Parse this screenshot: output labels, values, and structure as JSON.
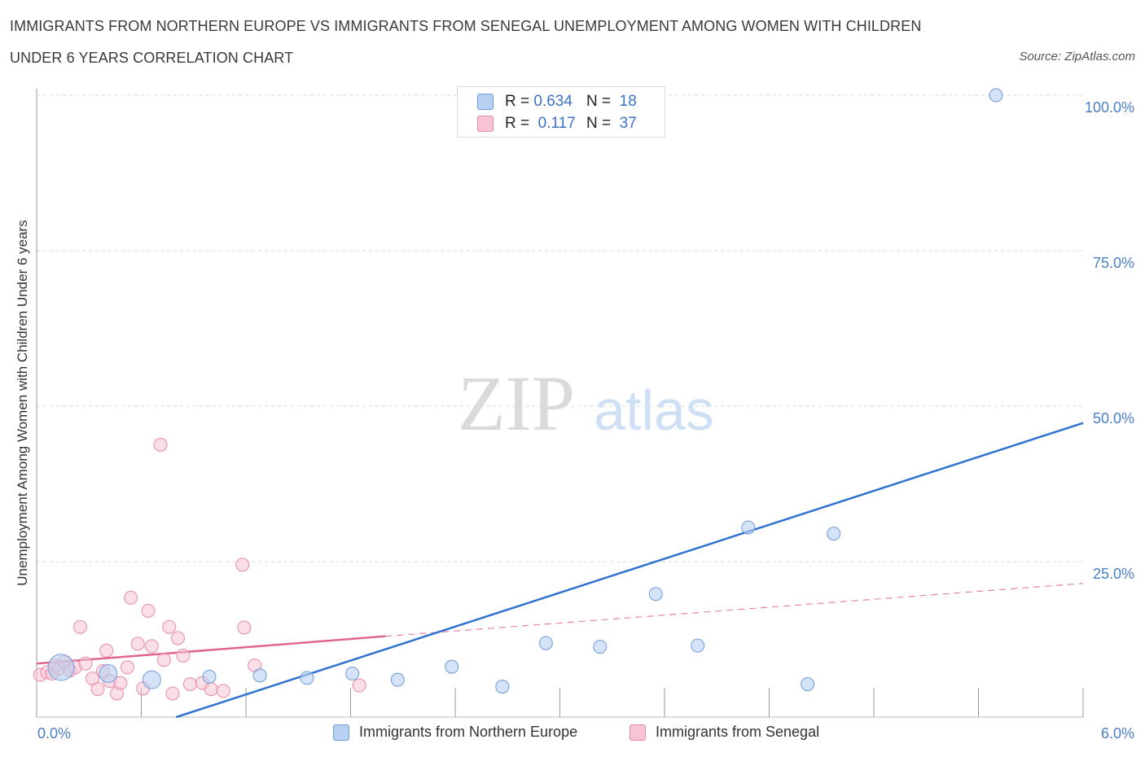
{
  "title_line1": "IMMIGRANTS FROM NORTHERN EUROPE VS IMMIGRANTS FROM SENEGAL UNEMPLOYMENT AMONG WOMEN WITH CHILDREN",
  "title_line2": "UNDER 6 YEARS CORRELATION CHART",
  "source": "Source: ZipAtlas.com",
  "watermark": {
    "zip": "ZIP",
    "atlas": "atlas"
  },
  "colors": {
    "blue_fill": "#b8d0f2",
    "blue_stroke": "#6f9bd8",
    "blue_line": "#2f72d0",
    "pink_fill": "#f8c4d4",
    "pink_stroke": "#e98aa8",
    "pink_line": "#e0668f",
    "tick_text": "#4a7fc8",
    "grid": "#d8d8d8"
  },
  "legend": {
    "rows": [
      {
        "r_label": "R =",
        "r_value": "0.634",
        "n_label": "N =",
        "n_value": "18",
        "series": "blue"
      },
      {
        "r_label": "R =",
        "r_value": "0.117",
        "n_label": "N =",
        "n_value": "37",
        "series": "pink"
      }
    ]
  },
  "bottom_legend": {
    "blue": "Immigrants from Northern Europe",
    "pink": "Immigrants from Senegal"
  },
  "chart_data": {
    "type": "scatter",
    "title": "IMMIGRANTS FROM NORTHERN EUROPE VS IMMIGRANTS FROM SENEGAL UNEMPLOYMENT AMONG WOMEN WITH CHILDREN UNDER 6 YEARS CORRELATION CHART",
    "xlabel": "",
    "ylabel": "Unemployment Among Women with Children Under 6 years",
    "xlim": [
      0,
      6
    ],
    "ylim": [
      0,
      100
    ],
    "x_tick_labels": [
      "0.0%",
      "6.0%"
    ],
    "y_ticks": [
      25,
      50,
      75,
      100
    ],
    "y_tick_labels": [
      "25.0%",
      "50.0%",
      "75.0%",
      "100.0%"
    ],
    "grid": true,
    "legend_position": "top-center",
    "series": [
      {
        "name": "Immigrants from Northern Europe",
        "color": "blue",
        "points": [
          {
            "x": 0.14,
            "y": 8.0,
            "size": "large"
          },
          {
            "x": 0.41,
            "y": 7.0,
            "size": "medium"
          },
          {
            "x": 0.66,
            "y": 6.0,
            "size": "medium"
          },
          {
            "x": 0.99,
            "y": 6.5
          },
          {
            "x": 1.28,
            "y": 6.7
          },
          {
            "x": 1.55,
            "y": 6.3
          },
          {
            "x": 1.81,
            "y": 7.0
          },
          {
            "x": 2.07,
            "y": 6.0
          },
          {
            "x": 2.38,
            "y": 8.1
          },
          {
            "x": 2.67,
            "y": 4.9
          },
          {
            "x": 2.92,
            "y": 11.9
          },
          {
            "x": 3.23,
            "y": 11.3
          },
          {
            "x": 3.55,
            "y": 19.8
          },
          {
            "x": 3.79,
            "y": 11.5
          },
          {
            "x": 4.08,
            "y": 30.5
          },
          {
            "x": 4.42,
            "y": 5.3
          },
          {
            "x": 4.57,
            "y": 29.5
          },
          {
            "x": 5.5,
            "y": 100.0
          }
        ],
        "trend": {
          "x0": 0.8,
          "y0": 0.0,
          "x1": 6.0,
          "y1": 47.3,
          "style": "solid"
        }
      },
      {
        "name": "Immigrants from Senegal",
        "color": "pink",
        "points": [
          {
            "x": 0.02,
            "y": 6.8
          },
          {
            "x": 0.06,
            "y": 7.2
          },
          {
            "x": 0.09,
            "y": 7.0
          },
          {
            "x": 0.11,
            "y": 8.3
          },
          {
            "x": 0.13,
            "y": 7.8
          },
          {
            "x": 0.16,
            "y": 8.8
          },
          {
            "x": 0.19,
            "y": 7.5
          },
          {
            "x": 0.22,
            "y": 8.0
          },
          {
            "x": 0.25,
            "y": 14.5
          },
          {
            "x": 0.28,
            "y": 8.6
          },
          {
            "x": 0.32,
            "y": 6.2
          },
          {
            "x": 0.35,
            "y": 4.5
          },
          {
            "x": 0.38,
            "y": 7.4
          },
          {
            "x": 0.4,
            "y": 10.7
          },
          {
            "x": 0.42,
            "y": 5.8
          },
          {
            "x": 0.46,
            "y": 3.8
          },
          {
            "x": 0.48,
            "y": 5.5
          },
          {
            "x": 0.52,
            "y": 8.0
          },
          {
            "x": 0.54,
            "y": 19.2
          },
          {
            "x": 0.58,
            "y": 11.8
          },
          {
            "x": 0.61,
            "y": 4.6
          },
          {
            "x": 0.64,
            "y": 17.1
          },
          {
            "x": 0.66,
            "y": 11.4
          },
          {
            "x": 0.71,
            "y": 43.8
          },
          {
            "x": 0.73,
            "y": 9.2
          },
          {
            "x": 0.76,
            "y": 14.5
          },
          {
            "x": 0.78,
            "y": 3.8
          },
          {
            "x": 0.81,
            "y": 12.7
          },
          {
            "x": 0.84,
            "y": 9.9
          },
          {
            "x": 0.88,
            "y": 5.3
          },
          {
            "x": 0.95,
            "y": 5.5
          },
          {
            "x": 1.0,
            "y": 4.5
          },
          {
            "x": 1.07,
            "y": 4.2
          },
          {
            "x": 1.18,
            "y": 24.5
          },
          {
            "x": 1.19,
            "y": 14.4
          },
          {
            "x": 1.25,
            "y": 8.3
          },
          {
            "x": 1.85,
            "y": 5.1
          }
        ],
        "trend": {
          "x0": 0.0,
          "y0": 8.6,
          "x1": 2.0,
          "y1": 13.0,
          "style": "solid",
          "extension": {
            "x0": 2.0,
            "y0": 13.0,
            "x1": 6.0,
            "y1": 21.5,
            "style": "dashed"
          }
        }
      }
    ]
  }
}
